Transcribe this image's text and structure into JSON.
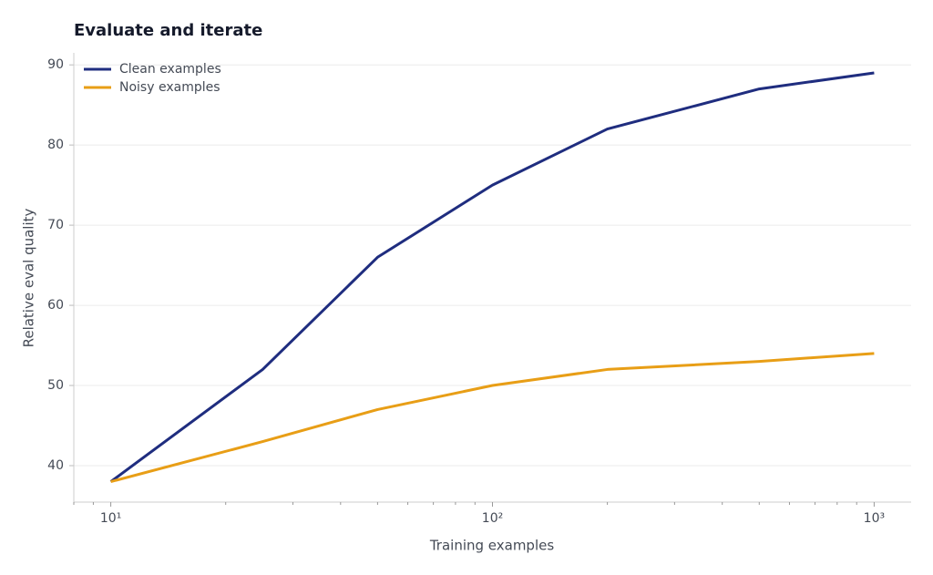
{
  "chart_data": {
    "type": "line",
    "title": "Evaluate and iterate",
    "xlabel": "Training examples",
    "ylabel": "Relative eval quality",
    "xscale": "log",
    "x": [
      10,
      25,
      50,
      100,
      200,
      500,
      1000
    ],
    "series": [
      {
        "name": "Clean examples",
        "color": "#1f2d7f",
        "values": [
          38,
          52,
          66,
          75,
          82,
          87,
          89
        ]
      },
      {
        "name": "Noisy examples",
        "color": "#e89e16",
        "values": [
          38,
          43,
          47,
          50,
          52,
          53,
          54
        ]
      }
    ],
    "xlim": [
      8,
      1250
    ],
    "ylim": [
      35.45,
      91.5
    ],
    "xticks": [
      {
        "value": 10,
        "label": "10¹"
      },
      {
        "value": 100,
        "label": "10²"
      },
      {
        "value": 1000,
        "label": "10³"
      }
    ],
    "xminorticks": [
      8,
      9,
      20,
      30,
      40,
      50,
      60,
      70,
      80,
      90,
      200,
      300,
      400,
      500,
      600,
      700,
      800,
      900
    ],
    "yticks": [
      40,
      50,
      60,
      70,
      80,
      90
    ],
    "grid": true,
    "legend": "upper left"
  }
}
